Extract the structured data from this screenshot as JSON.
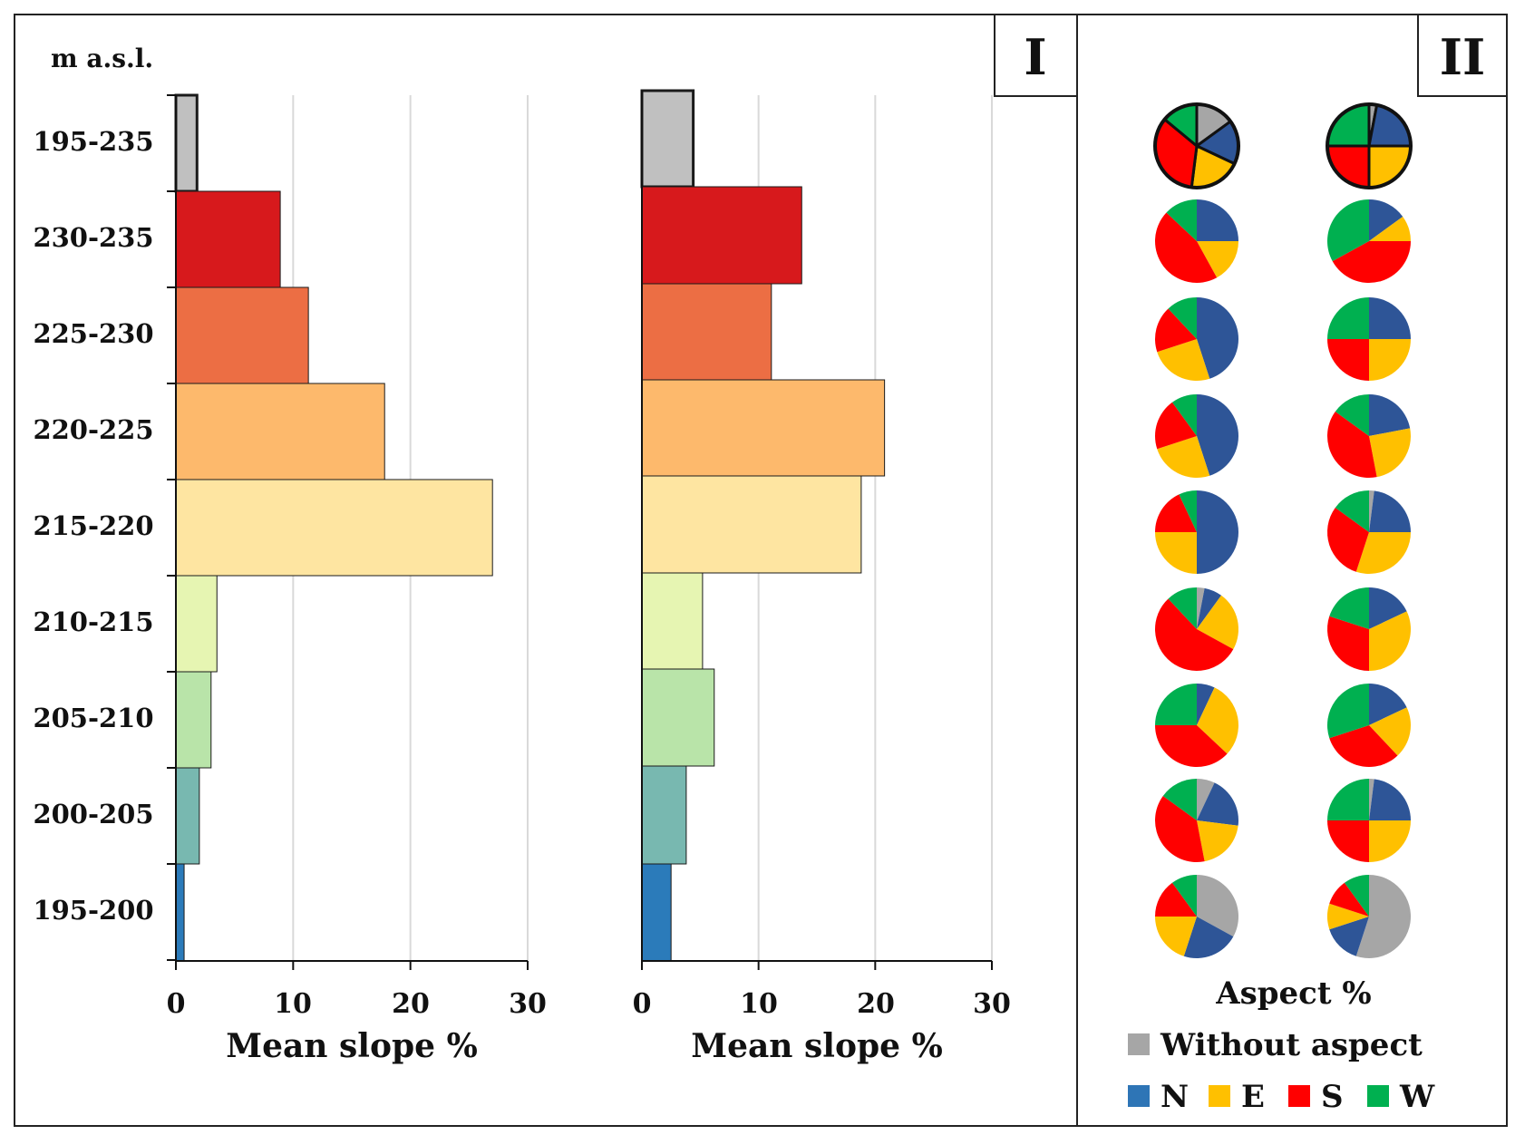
{
  "panel_labels": {
    "left": "I",
    "right": "II"
  },
  "y_axis_title": "m a.s.l.",
  "elevation_classes": [
    "195-235",
    "230-235",
    "225-230",
    "220-225",
    "215-220",
    "210-215",
    "205-210",
    "200-205",
    "195-200"
  ],
  "colors": {
    "bars": [
      "#c0c0c0",
      "#d7191c",
      "#ec6e44",
      "#fdb96c",
      "#fee5a1",
      "#e6f5b2",
      "#b9e4a9",
      "#78b8b0",
      "#2b7bba"
    ],
    "aspect": {
      "without": "#a6a6a6",
      "N": "#2e5597",
      "E": "#ffc000",
      "S": "#ff0000",
      "W": "#00b050"
    },
    "legend_N": "#2e75b6",
    "grid": "#d9d9d9"
  },
  "chart_data": [
    {
      "type": "bar",
      "orientation": "horizontal",
      "categories": [
        "195-235",
        "230-235",
        "225-230",
        "220-225",
        "215-220",
        "210-215",
        "205-210",
        "200-205",
        "195-200"
      ],
      "values": [
        1.8,
        8.9,
        11.3,
        17.8,
        27.0,
        3.5,
        3.0,
        2.0,
        0.7
      ],
      "xlabel": "Mean slope %",
      "xlim": [
        0,
        30
      ],
      "xticks": [
        "0",
        "10",
        "20",
        "30"
      ],
      "grid": true
    },
    {
      "type": "bar",
      "orientation": "horizontal",
      "categories": [
        "195-235",
        "230-235",
        "225-230",
        "220-225",
        "215-220",
        "210-215",
        "205-210",
        "200-205",
        "195-200"
      ],
      "values": [
        4.4,
        13.7,
        11.1,
        20.8,
        18.8,
        5.2,
        6.2,
        3.8,
        2.5
      ],
      "xlabel": "Mean slope %",
      "xlim": [
        0,
        30
      ],
      "xticks": [
        "0",
        "10",
        "20",
        "30"
      ],
      "grid": true
    },
    {
      "type": "pie",
      "title": "Aspect %",
      "slice_order": [
        "Without aspect",
        "N",
        "E",
        "S",
        "W"
      ],
      "columns": [
        [
          [
            15,
            17,
            20,
            34,
            14
          ],
          [
            0,
            25,
            17,
            45,
            13
          ],
          [
            0,
            45,
            25,
            18,
            12
          ],
          [
            0,
            45,
            25,
            20,
            10
          ],
          [
            0,
            50,
            25,
            18,
            7
          ],
          [
            3,
            7,
            23,
            55,
            12
          ],
          [
            0,
            7,
            30,
            38,
            25
          ],
          [
            7,
            20,
            20,
            38,
            15
          ],
          [
            33,
            22,
            20,
            15,
            10
          ]
        ],
        [
          [
            3,
            22,
            25,
            25,
            25
          ],
          [
            0,
            15,
            10,
            42,
            33
          ],
          [
            0,
            25,
            25,
            25,
            25
          ],
          [
            0,
            22,
            25,
            38,
            15
          ],
          [
            2,
            23,
            30,
            30,
            15
          ],
          [
            0,
            18,
            32,
            30,
            20
          ],
          [
            0,
            18,
            20,
            32,
            30
          ],
          [
            2,
            23,
            25,
            25,
            25
          ],
          [
            55,
            15,
            10,
            10,
            10
          ]
        ]
      ],
      "legend": {
        "without": "Without aspect",
        "N": "N",
        "E": "E",
        "S": "S",
        "W": "W"
      }
    }
  ]
}
